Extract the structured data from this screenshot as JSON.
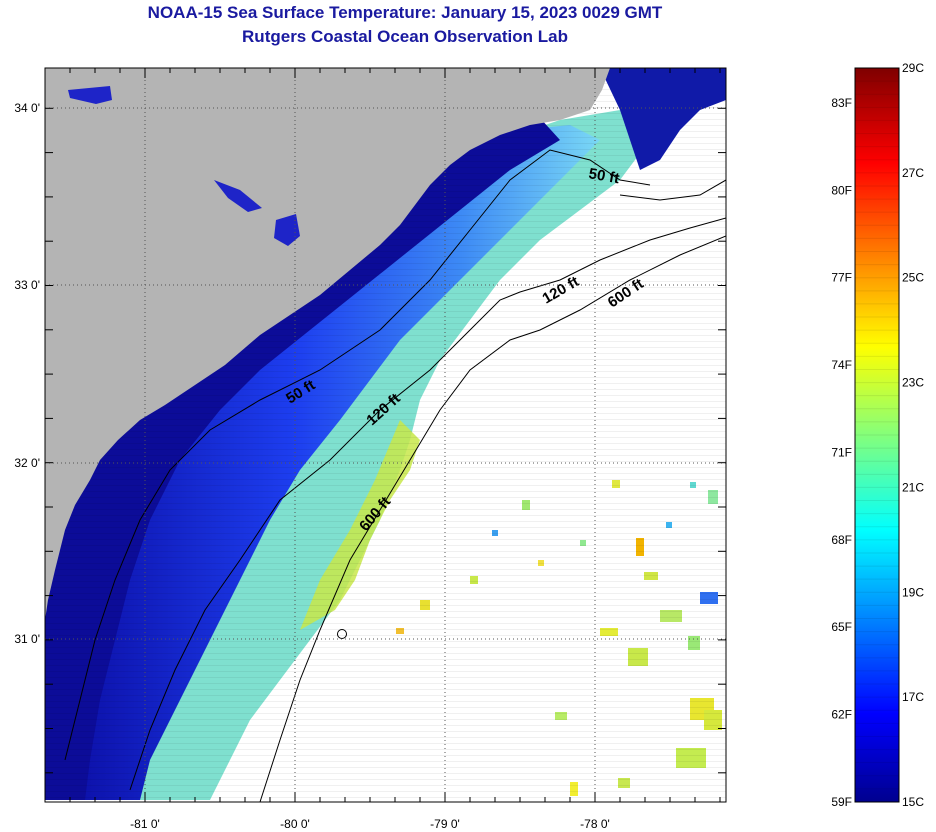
{
  "header": {
    "title": "NOAA-15 Sea Surface Temperature:  January 15, 2023 0029 GMT",
    "subtitle": "Rutgers Coastal Ocean Observation Lab"
  },
  "map": {
    "lon_labels": [
      "-81 0'",
      "-80 0'",
      "-79 0'",
      "-78 0'"
    ],
    "lat_labels": [
      "34 0'",
      "33 0'",
      "32 0'",
      "31 0'"
    ],
    "isobaths": {
      "inner_50": "50 ft",
      "inner_120": "120 ft",
      "inner_600": "600 ft",
      "outer_50": "50 ft",
      "outer_120": "120 ft",
      "outer_600": "600 ft"
    },
    "colors": {
      "land": "#b4b4b4",
      "coast_dark": "#0a0a8c",
      "shelf_blue": "#2a52ff"
    }
  },
  "colorbar": {
    "f_labels": [
      "83F",
      "80F",
      "77F",
      "74F",
      "71F",
      "68F",
      "65F",
      "62F",
      "59F"
    ],
    "c_labels": [
      "29C",
      "27C",
      "25C",
      "23C",
      "21C",
      "19C",
      "17C",
      "15C"
    ],
    "f_values": [
      83,
      80,
      77,
      74,
      71,
      68,
      65,
      62,
      59
    ],
    "c_values": [
      29,
      27,
      25,
      23,
      21,
      19,
      17,
      15
    ],
    "range_c": [
      15,
      29
    ]
  }
}
